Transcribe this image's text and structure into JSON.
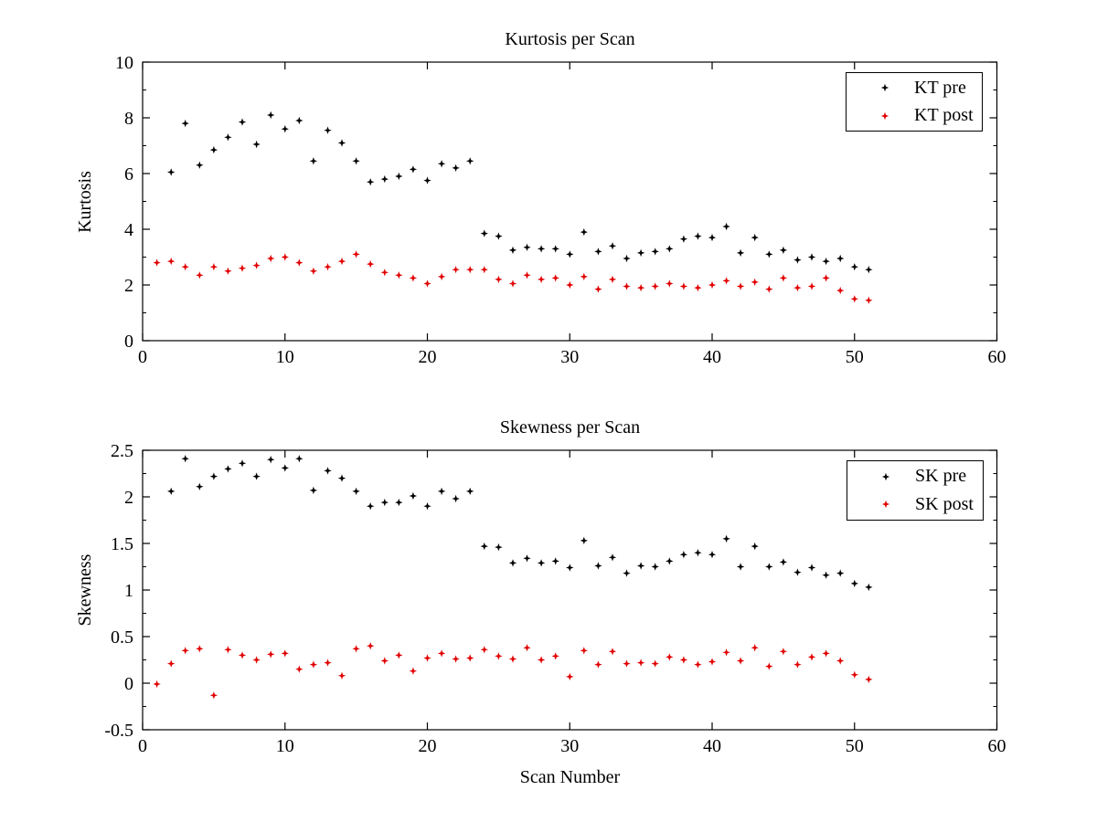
{
  "figure": {
    "background": "#ffffff",
    "frame_color": "#000000",
    "pre_color": "#000000",
    "post_color": "#e00000"
  },
  "chart_data": [
    {
      "type": "scatter",
      "marker": "diamond",
      "title": "Kurtosis per Scan",
      "xlabel": "",
      "ylabel": "Kurtosis",
      "xlim": [
        0,
        60
      ],
      "ylim": [
        0,
        10
      ],
      "grid": false,
      "x_ticks": [
        0,
        10,
        20,
        30,
        40,
        50,
        60
      ],
      "x_tick_labels": [
        "0",
        "10",
        "20",
        "30",
        "40",
        "50",
        "60"
      ],
      "y_ticks": [
        0,
        2,
        4,
        6,
        8,
        10
      ],
      "y_tick_labels": [
        "0",
        "2",
        "4",
        "6",
        "8",
        "10"
      ],
      "y_minor_ticks": [
        1,
        3,
        5,
        7,
        9
      ],
      "legend": {
        "position": "top-right",
        "entries": [
          {
            "label": "KT pre",
            "color": "#000000"
          },
          {
            "label": "KT post",
            "color": "#e00000"
          }
        ]
      },
      "series": [
        {
          "name": "KT pre",
          "color": "#000000",
          "x": [
            2,
            3,
            4,
            5,
            6,
            7,
            8,
            9,
            10,
            11,
            12,
            13,
            14,
            15,
            16,
            17,
            18,
            19,
            20,
            21,
            22,
            23,
            24,
            25,
            26,
            27,
            28,
            29,
            30,
            31,
            32,
            33,
            34,
            35,
            36,
            37,
            38,
            39,
            40,
            41,
            42,
            43,
            44,
            45,
            46,
            47,
            48,
            49,
            50,
            51
          ],
          "y": [
            6.05,
            7.8,
            6.3,
            6.85,
            7.3,
            7.85,
            7.05,
            8.1,
            7.6,
            7.9,
            6.45,
            7.55,
            7.1,
            6.45,
            5.7,
            5.8,
            5.9,
            6.15,
            5.75,
            6.35,
            6.2,
            6.45,
            3.85,
            3.75,
            3.25,
            3.35,
            3.3,
            3.3,
            3.1,
            3.9,
            3.2,
            3.4,
            2.95,
            3.15,
            3.2,
            3.3,
            3.65,
            3.75,
            3.7,
            4.1,
            3.15,
            3.7,
            3.1,
            3.25,
            2.9,
            3.0,
            2.85,
            2.95,
            2.65,
            2.55
          ]
        },
        {
          "name": "KT post",
          "color": "#e00000",
          "x": [
            1,
            2,
            3,
            4,
            5,
            6,
            7,
            8,
            9,
            10,
            11,
            12,
            13,
            14,
            15,
            16,
            17,
            18,
            19,
            20,
            21,
            22,
            23,
            24,
            25,
            26,
            27,
            28,
            29,
            30,
            31,
            32,
            33,
            34,
            35,
            36,
            37,
            38,
            39,
            40,
            41,
            42,
            43,
            44,
            45,
            46,
            47,
            48,
            49,
            50,
            51
          ],
          "y": [
            2.8,
            2.85,
            2.65,
            2.35,
            2.65,
            2.5,
            2.6,
            2.7,
            2.95,
            3.0,
            2.8,
            2.5,
            2.65,
            2.85,
            3.1,
            2.75,
            2.45,
            2.35,
            2.25,
            2.05,
            2.3,
            2.55,
            2.55,
            2.55,
            2.2,
            2.05,
            2.35,
            2.2,
            2.25,
            2.0,
            2.3,
            1.85,
            2.2,
            1.95,
            1.9,
            1.95,
            2.05,
            1.95,
            1.9,
            2.0,
            2.15,
            1.95,
            2.1,
            1.85,
            2.25,
            1.9,
            1.95,
            2.25,
            1.8,
            1.5,
            1.45
          ]
        }
      ]
    },
    {
      "type": "scatter",
      "marker": "diamond",
      "title": "Skewness per Scan",
      "xlabel": "Scan Number",
      "ylabel": "Skewness",
      "xlim": [
        0,
        60
      ],
      "ylim": [
        -0.5,
        2.5
      ],
      "grid": false,
      "x_ticks": [
        0,
        10,
        20,
        30,
        40,
        50,
        60
      ],
      "x_tick_labels": [
        "0",
        "10",
        "20",
        "30",
        "40",
        "50",
        "60"
      ],
      "y_ticks": [
        -0.5,
        0,
        0.5,
        1,
        1.5,
        2,
        2.5
      ],
      "y_tick_labels": [
        "-0.5",
        "0",
        "0.5",
        "1",
        "1.5",
        "2",
        "2.5"
      ],
      "y_minor_ticks": [
        -0.25,
        0.25,
        0.75,
        1.25,
        1.75,
        2.25
      ],
      "legend": {
        "position": "top-right",
        "entries": [
          {
            "label": "SK pre",
            "color": "#000000"
          },
          {
            "label": "SK post",
            "color": "#e00000"
          }
        ]
      },
      "series": [
        {
          "name": "SK pre",
          "color": "#000000",
          "x": [
            2,
            3,
            4,
            5,
            6,
            7,
            8,
            9,
            10,
            11,
            12,
            13,
            14,
            15,
            16,
            17,
            18,
            19,
            20,
            21,
            22,
            23,
            24,
            25,
            26,
            27,
            28,
            29,
            30,
            31,
            32,
            33,
            34,
            35,
            36,
            37,
            38,
            39,
            40,
            41,
            42,
            43,
            44,
            45,
            46,
            47,
            48,
            49,
            50,
            51
          ],
          "y": [
            2.06,
            2.41,
            2.11,
            2.22,
            2.3,
            2.36,
            2.22,
            2.4,
            2.31,
            2.41,
            2.07,
            2.28,
            2.2,
            2.06,
            1.9,
            1.94,
            1.94,
            2.01,
            1.9,
            2.06,
            1.98,
            2.06,
            1.47,
            1.46,
            1.29,
            1.34,
            1.29,
            1.31,
            1.24,
            1.53,
            1.26,
            1.35,
            1.18,
            1.26,
            1.25,
            1.31,
            1.38,
            1.4,
            1.38,
            1.55,
            1.25,
            1.47,
            1.25,
            1.3,
            1.19,
            1.24,
            1.16,
            1.18,
            1.07,
            1.03
          ]
        },
        {
          "name": "SK post",
          "color": "#e00000",
          "x": [
            1,
            2,
            3,
            4,
            5,
            6,
            7,
            8,
            9,
            10,
            11,
            12,
            13,
            14,
            15,
            16,
            17,
            18,
            19,
            20,
            21,
            22,
            23,
            24,
            25,
            26,
            27,
            28,
            29,
            30,
            31,
            32,
            33,
            34,
            35,
            36,
            37,
            38,
            39,
            40,
            41,
            42,
            43,
            44,
            45,
            46,
            47,
            48,
            49,
            50,
            51
          ],
          "y": [
            -0.01,
            0.21,
            0.35,
            0.37,
            -0.13,
            0.36,
            0.3,
            0.25,
            0.31,
            0.32,
            0.15,
            0.2,
            0.22,
            0.08,
            0.37,
            0.4,
            0.24,
            0.3,
            0.13,
            0.27,
            0.32,
            0.26,
            0.27,
            0.36,
            0.29,
            0.26,
            0.38,
            0.25,
            0.29,
            0.07,
            0.35,
            0.2,
            0.34,
            0.21,
            0.22,
            0.21,
            0.28,
            0.25,
            0.2,
            0.23,
            0.33,
            0.24,
            0.38,
            0.18,
            0.34,
            0.2,
            0.28,
            0.32,
            0.24,
            0.09,
            0.04
          ]
        }
      ]
    }
  ]
}
